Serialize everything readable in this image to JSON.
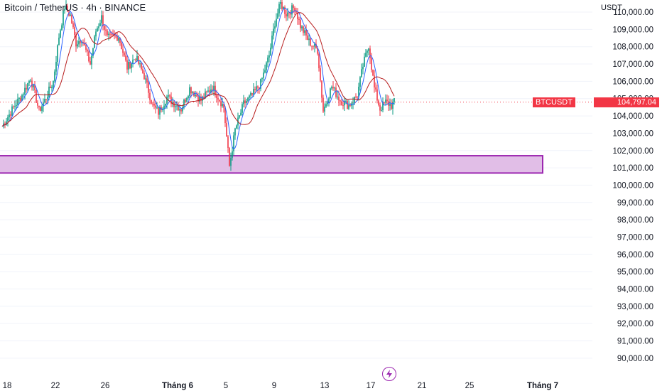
{
  "header": {
    "title": "Bitcoin / TetherUS · 4h · BINANCE"
  },
  "axis": {
    "currency": "USDT"
  },
  "price_badge": {
    "symbol": "BTCUSDT",
    "value": "104,797.04"
  },
  "colors": {
    "up": "#089981",
    "down": "#f23645",
    "ma_fast": "#2962ff",
    "ma_slow": "#b71c1c",
    "zone_fill": "#e1bee7",
    "zone_border": "#9c27b0",
    "grid": "#f0f3fa"
  },
  "chart_data": {
    "type": "candlestick",
    "ylim": [
      89500,
      110700
    ],
    "y_ticks": [
      "110,000.00",
      "109,000.00",
      "108,000.00",
      "107,000.00",
      "106,000.00",
      "105,000.00",
      "104,000.00",
      "103,000.00",
      "102,000.00",
      "101,000.00",
      "100,000.00",
      "99,000.00",
      "98,000.00",
      "97,000.00",
      "96,000.00",
      "95,000.00",
      "94,000.00",
      "93,000.00",
      "92,000.00",
      "91,000.00",
      "90,000.00"
    ],
    "x_ticks": [
      "18",
      "22",
      "26",
      "Tháng 6",
      "5",
      "9",
      "13",
      "17",
      "21",
      "25",
      "Tháng 7"
    ],
    "last_price": 104797.04,
    "support_zone": [
      100700,
      101700
    ],
    "ohlc_anchors": [
      [
        0,
        103400
      ],
      [
        8,
        104500
      ],
      [
        14,
        105200
      ],
      [
        20,
        106200
      ],
      [
        26,
        104300
      ],
      [
        30,
        104900
      ],
      [
        36,
        106000
      ],
      [
        40,
        108600
      ],
      [
        44,
        110300
      ],
      [
        48,
        109800
      ],
      [
        52,
        108200
      ],
      [
        56,
        108500
      ],
      [
        62,
        107000
      ],
      [
        66,
        108900
      ],
      [
        70,
        109700
      ],
      [
        74,
        108500
      ],
      [
        82,
        108600
      ],
      [
        88,
        106800
      ],
      [
        94,
        107400
      ],
      [
        100,
        106300
      ],
      [
        106,
        104600
      ],
      [
        110,
        104200
      ],
      [
        116,
        105100
      ],
      [
        120,
        104800
      ],
      [
        126,
        104400
      ],
      [
        132,
        105600
      ],
      [
        140,
        104900
      ],
      [
        148,
        105700
      ],
      [
        156,
        104500
      ],
      [
        160,
        101100
      ],
      [
        164,
        103200
      ],
      [
        170,
        104700
      ],
      [
        176,
        105200
      ],
      [
        182,
        105900
      ],
      [
        188,
        107500
      ],
      [
        192,
        109400
      ],
      [
        196,
        110500
      ],
      [
        200,
        109900
      ],
      [
        206,
        110300
      ],
      [
        210,
        109200
      ],
      [
        216,
        108300
      ],
      [
        222,
        107800
      ],
      [
        226,
        104300
      ],
      [
        232,
        105700
      ],
      [
        238,
        104900
      ],
      [
        244,
        104600
      ],
      [
        250,
        105200
      ],
      [
        254,
        106900
      ],
      [
        258,
        108100
      ],
      [
        262,
        105600
      ],
      [
        266,
        104400
      ],
      [
        270,
        104800
      ],
      [
        274,
        104600
      ],
      [
        276,
        104800
      ]
    ]
  }
}
